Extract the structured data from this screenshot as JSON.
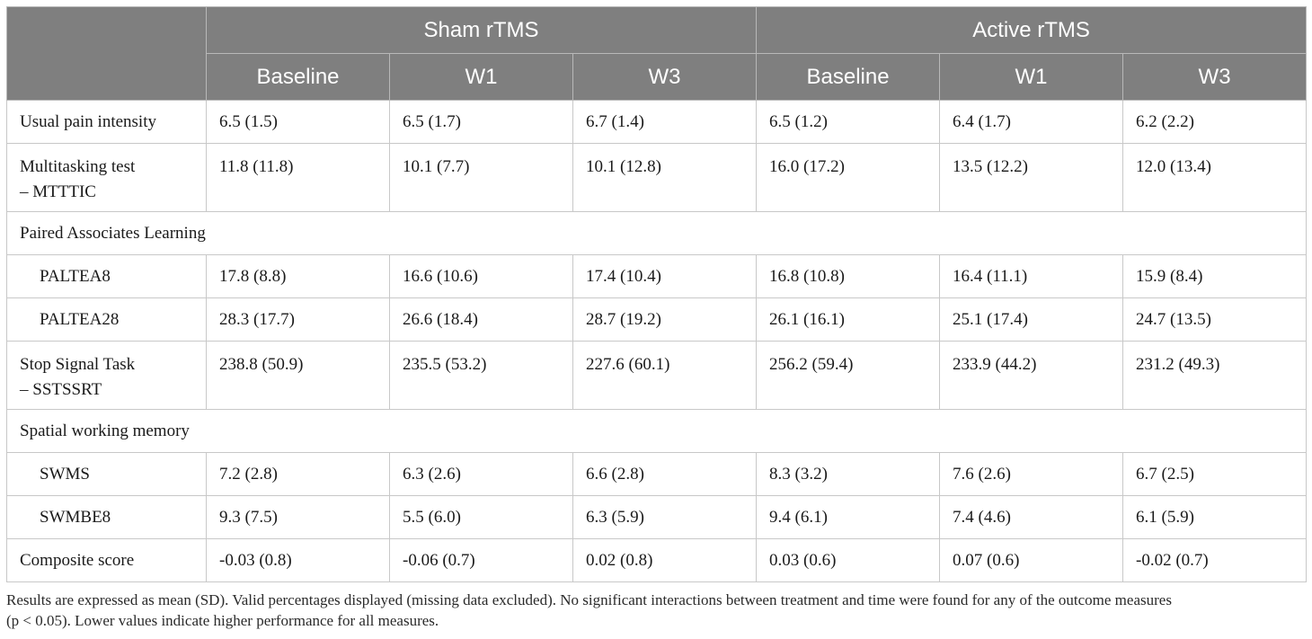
{
  "table": {
    "groups": [
      {
        "label": "Sham rTMS"
      },
      {
        "label": "Active rTMS"
      }
    ],
    "subheaders": [
      "Baseline",
      "W1",
      "W3",
      "Baseline",
      "W1",
      "W3"
    ],
    "rows": [
      {
        "label": [
          "Usual pain intensity"
        ],
        "values": [
          "6.5 (1.5)",
          "6.5 (1.7)",
          "6.7 (1.4)",
          "6.5 (1.2)",
          "6.4 (1.7)",
          "6.2 (2.2)"
        ]
      },
      {
        "label": [
          "Multitasking test",
          "– MTTTIC"
        ],
        "values": [
          "11.8 (11.8)",
          "10.1 (7.7)",
          "10.1 (12.8)",
          "16.0 (17.2)",
          "13.5 (12.2)",
          "12.0 (13.4)"
        ]
      },
      {
        "section": "Paired Associates Learning"
      },
      {
        "label": [
          "PALTEA8"
        ],
        "values": [
          "17.8 (8.8)",
          "16.6 (10.6)",
          "17.4 (10.4)",
          "16.8 (10.8)",
          "16.4 (11.1)",
          "15.9 (8.4)"
        ]
      },
      {
        "label": [
          "PALTEA28"
        ],
        "values": [
          "28.3 (17.7)",
          "26.6 (18.4)",
          "28.7 (19.2)",
          "26.1 (16.1)",
          "25.1 (17.4)",
          "24.7 (13.5)"
        ]
      },
      {
        "label": [
          "Stop Signal Task",
          "– SSTSSRT"
        ],
        "values": [
          "238.8 (50.9)",
          "235.5 (53.2)",
          "227.6 (60.1)",
          "256.2 (59.4)",
          "233.9 (44.2)",
          "231.2 (49.3)"
        ]
      },
      {
        "section": "Spatial working memory"
      },
      {
        "label": [
          "SWMS"
        ],
        "values": [
          "7.2 (2.8)",
          "6.3 (2.6)",
          "6.6 (2.8)",
          "8.3 (3.2)",
          "7.6 (2.6)",
          "6.7 (2.5)"
        ]
      },
      {
        "label": [
          "SWMBE8"
        ],
        "values": [
          "9.3 (7.5)",
          "5.5 (6.0)",
          "6.3 (5.9)",
          "9.4 (6.1)",
          "7.4 (4.6)",
          "6.1 (5.9)"
        ]
      },
      {
        "label": [
          "Composite score"
        ],
        "values": [
          "-0.03 (0.8)",
          "-0.06 (0.7)",
          "0.02 (0.8)",
          "0.03 (0.6)",
          "0.07 (0.6)",
          "-0.02 (0.7)"
        ]
      }
    ]
  },
  "footnote": {
    "line1": "Results are expressed as mean (SD). Valid percentages displayed (missing data excluded). No significant interactions between treatment and time were found for any of the outcome measures",
    "line2": "(p < 0.05). Lower values indicate higher performance for all measures."
  }
}
